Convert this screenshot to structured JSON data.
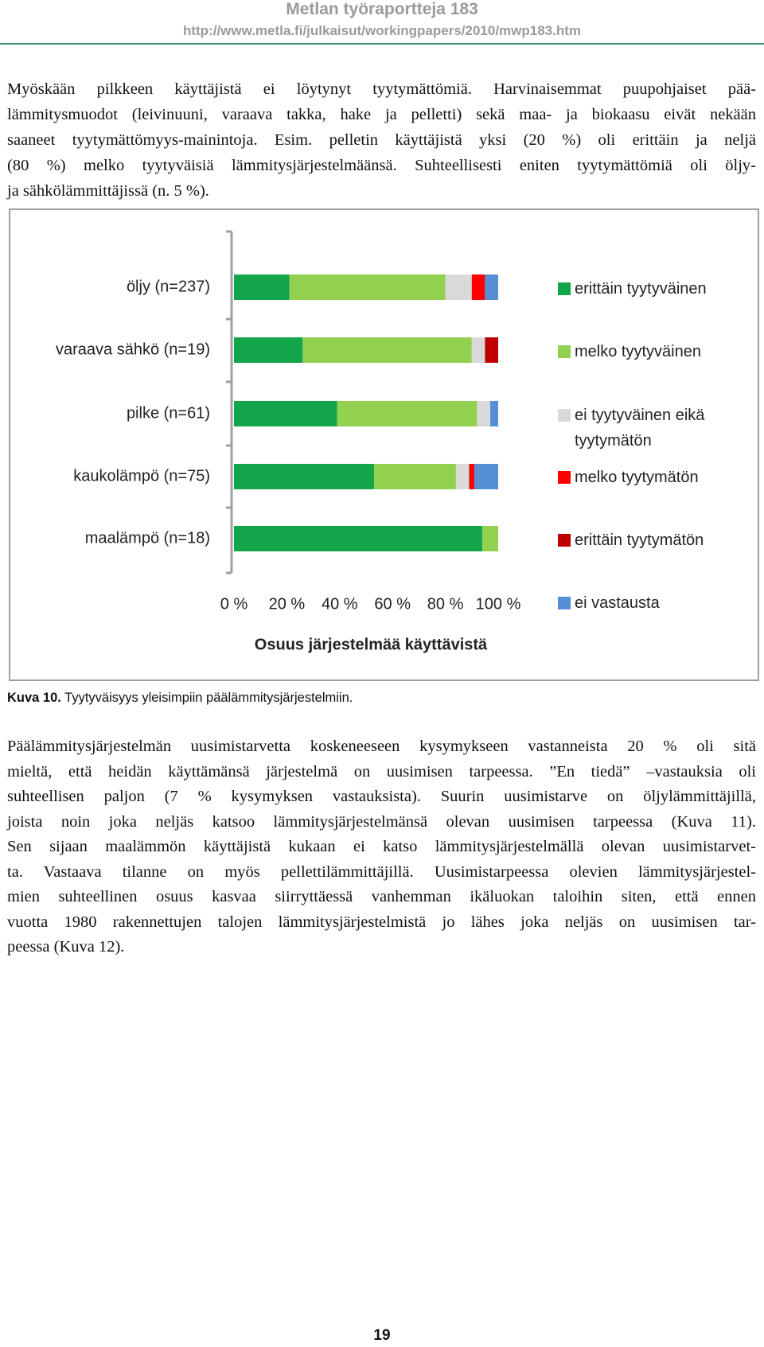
{
  "header": {
    "title": "Metlan työraportteja 183",
    "url": "http://www.metla.fi/julkaisut/workingpapers/2010/mwp183.htm"
  },
  "body_top": {
    "lines": [
      "Myöskään pilkkeen käyttäjistä ei löytynyt tyytymättömiä. Harvinaisemmat puupohjaiset pää-",
      "lämmitysmuodot (leivinuuni, varaava takka, hake ja pelletti) sekä maa- ja biokaasu eivät nekään",
      "saaneet tyytymättömyys-mainintoja. Esim. pelletin käyttäjistä yksi (20 %) oli erittäin ja neljä",
      "(80 %) melko tyytyväisiä lämmitysjärjestelmäänsä. Suhteellisesti eniten tyytymättömiä oli öljy-",
      "ja sähkölämmittäjissä (n. 5 %)."
    ]
  },
  "chart_data": {
    "type": "bar",
    "orientation": "horizontal",
    "stacked": true,
    "categories": [
      "öljy (n=237)",
      "varaava sähkö  (n=19)",
      "pilke (n=61)",
      "kaukolämpö  (n=75)",
      "maalämpö  (n=18)"
    ],
    "series": [
      {
        "name": "erittäin tyytyväinen",
        "color": "#12a54a",
        "values": [
          21,
          26,
          39,
          53,
          94
        ]
      },
      {
        "name": "melko tyytyväinen",
        "color": "#92d050",
        "values": [
          59,
          64,
          53,
          31,
          6
        ]
      },
      {
        "name": "ei tyytyväinen eikä tyytymätön",
        "color": "#d9d9d9",
        "values": [
          10,
          5,
          5,
          5,
          0
        ]
      },
      {
        "name": "melko tyytymätön",
        "color": "#ff0000",
        "values": [
          5,
          0,
          0,
          2,
          0
        ]
      },
      {
        "name": "erittäin tyytymätön",
        "color": "#c00000",
        "values": [
          0,
          5,
          0,
          0,
          0
        ]
      },
      {
        "name": "ei vastausta",
        "color": "#558ed5",
        "values": [
          5,
          0,
          3,
          9,
          0
        ]
      }
    ],
    "xlim": [
      0,
      100
    ],
    "xticks": [
      {
        "value": 0,
        "label": "0 %"
      },
      {
        "value": 20,
        "label": "20 %"
      },
      {
        "value": 40,
        "label": "40 %"
      },
      {
        "value": 60,
        "label": "60 %"
      },
      {
        "value": 80,
        "label": "80 %"
      },
      {
        "value": 100,
        "label": "100 %"
      }
    ],
    "x_label": "Osuus järjestelmää käyttävistä",
    "legend": "right"
  },
  "caption": {
    "label": "Kuva 10.",
    "text": " Tyytyväisyys yleisimpiin päälämmitysjärjestelmiin."
  },
  "body_bottom": {
    "lines": [
      "Päälämmitysjärjestelmän uusimistarvetta koskeneeseen kysymykseen vastanneista 20 % oli sitä",
      "mieltä, että heidän käyttämänsä järjestelmä on uusimisen tarpeessa. ”En tiedä” –vastauksia oli",
      "suhteellisen paljon (7 % kysymyksen vastauksista). Suurin uusimistarve on öljylämmittäjillä,",
      "joista noin joka neljäs katsoo lämmitysjärjestelmänsä olevan uusimisen tarpeessa (Kuva 11).",
      "Sen sijaan maalämmön käyttäjistä kukaan ei katso lämmitysjärjestelmällä olevan uusimistarvet-",
      "ta. Vastaava tilanne on myös pellettilämmittäjillä. Uusimistarpeessa olevien lämmitysjärjestel-",
      "mien suhteellinen osuus kasvaa siirryttäessä vanhemman ikäluokan taloihin siten, että ennen",
      "vuotta 1980 rakennettujen talojen lämmitysjärjestelmistä jo lähes joka neljäs on uusimisen tar-",
      "peessa (Kuva 12)."
    ]
  },
  "page_number": "19"
}
